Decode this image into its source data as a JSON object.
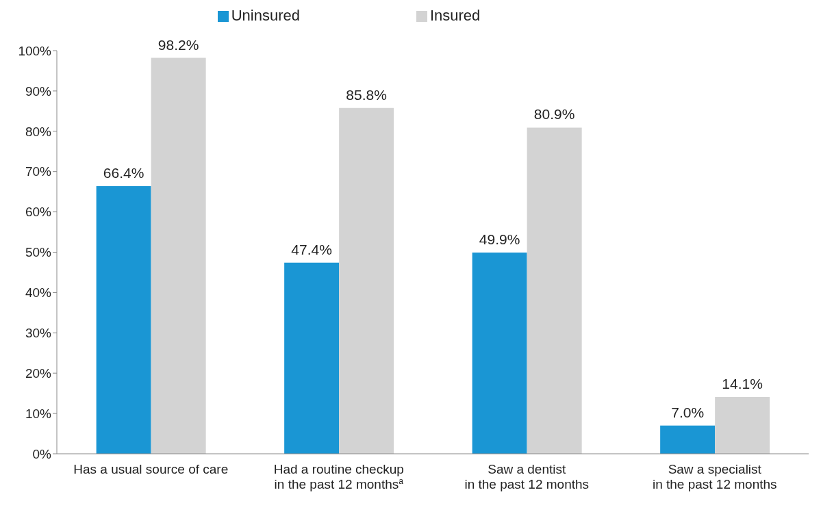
{
  "chart_data": {
    "type": "bar",
    "categories": [
      "Has a usual source of care",
      "Had a routine checkup\nin the past 12 months$^{a}$",
      "Saw a dentist\nin the past 12 months",
      "Saw a specialist\nin the past 12 months"
    ],
    "series": [
      {
        "name": "Uninsured",
        "color": "#1a96d4",
        "values": [
          66.4,
          47.4,
          49.9,
          7.0
        ],
        "value_labels": [
          "66.4%",
          "47.4%",
          "49.9%",
          "7.0%"
        ]
      },
      {
        "name": "Insured",
        "color": "#d3d3d3",
        "values": [
          98.2,
          85.8,
          80.9,
          14.1
        ],
        "value_labels": [
          "98.2%",
          "85.8%",
          "80.9%",
          "14.1%"
        ]
      }
    ],
    "ylim": [
      0,
      100
    ],
    "yticks": [
      {
        "value": 0,
        "label": "0%"
      },
      {
        "value": 10,
        "label": "10%"
      },
      {
        "value": 20,
        "label": "20%"
      },
      {
        "value": 30,
        "label": "30%"
      },
      {
        "value": 40,
        "label": "40%"
      },
      {
        "value": 50,
        "label": "50%"
      },
      {
        "value": 60,
        "label": "60%"
      },
      {
        "value": 70,
        "label": "70%"
      },
      {
        "value": 80,
        "label": "80%"
      },
      {
        "value": 90,
        "label": "90%"
      },
      {
        "value": 100,
        "label": "100%"
      }
    ],
    "grid": false,
    "legend": "top"
  }
}
